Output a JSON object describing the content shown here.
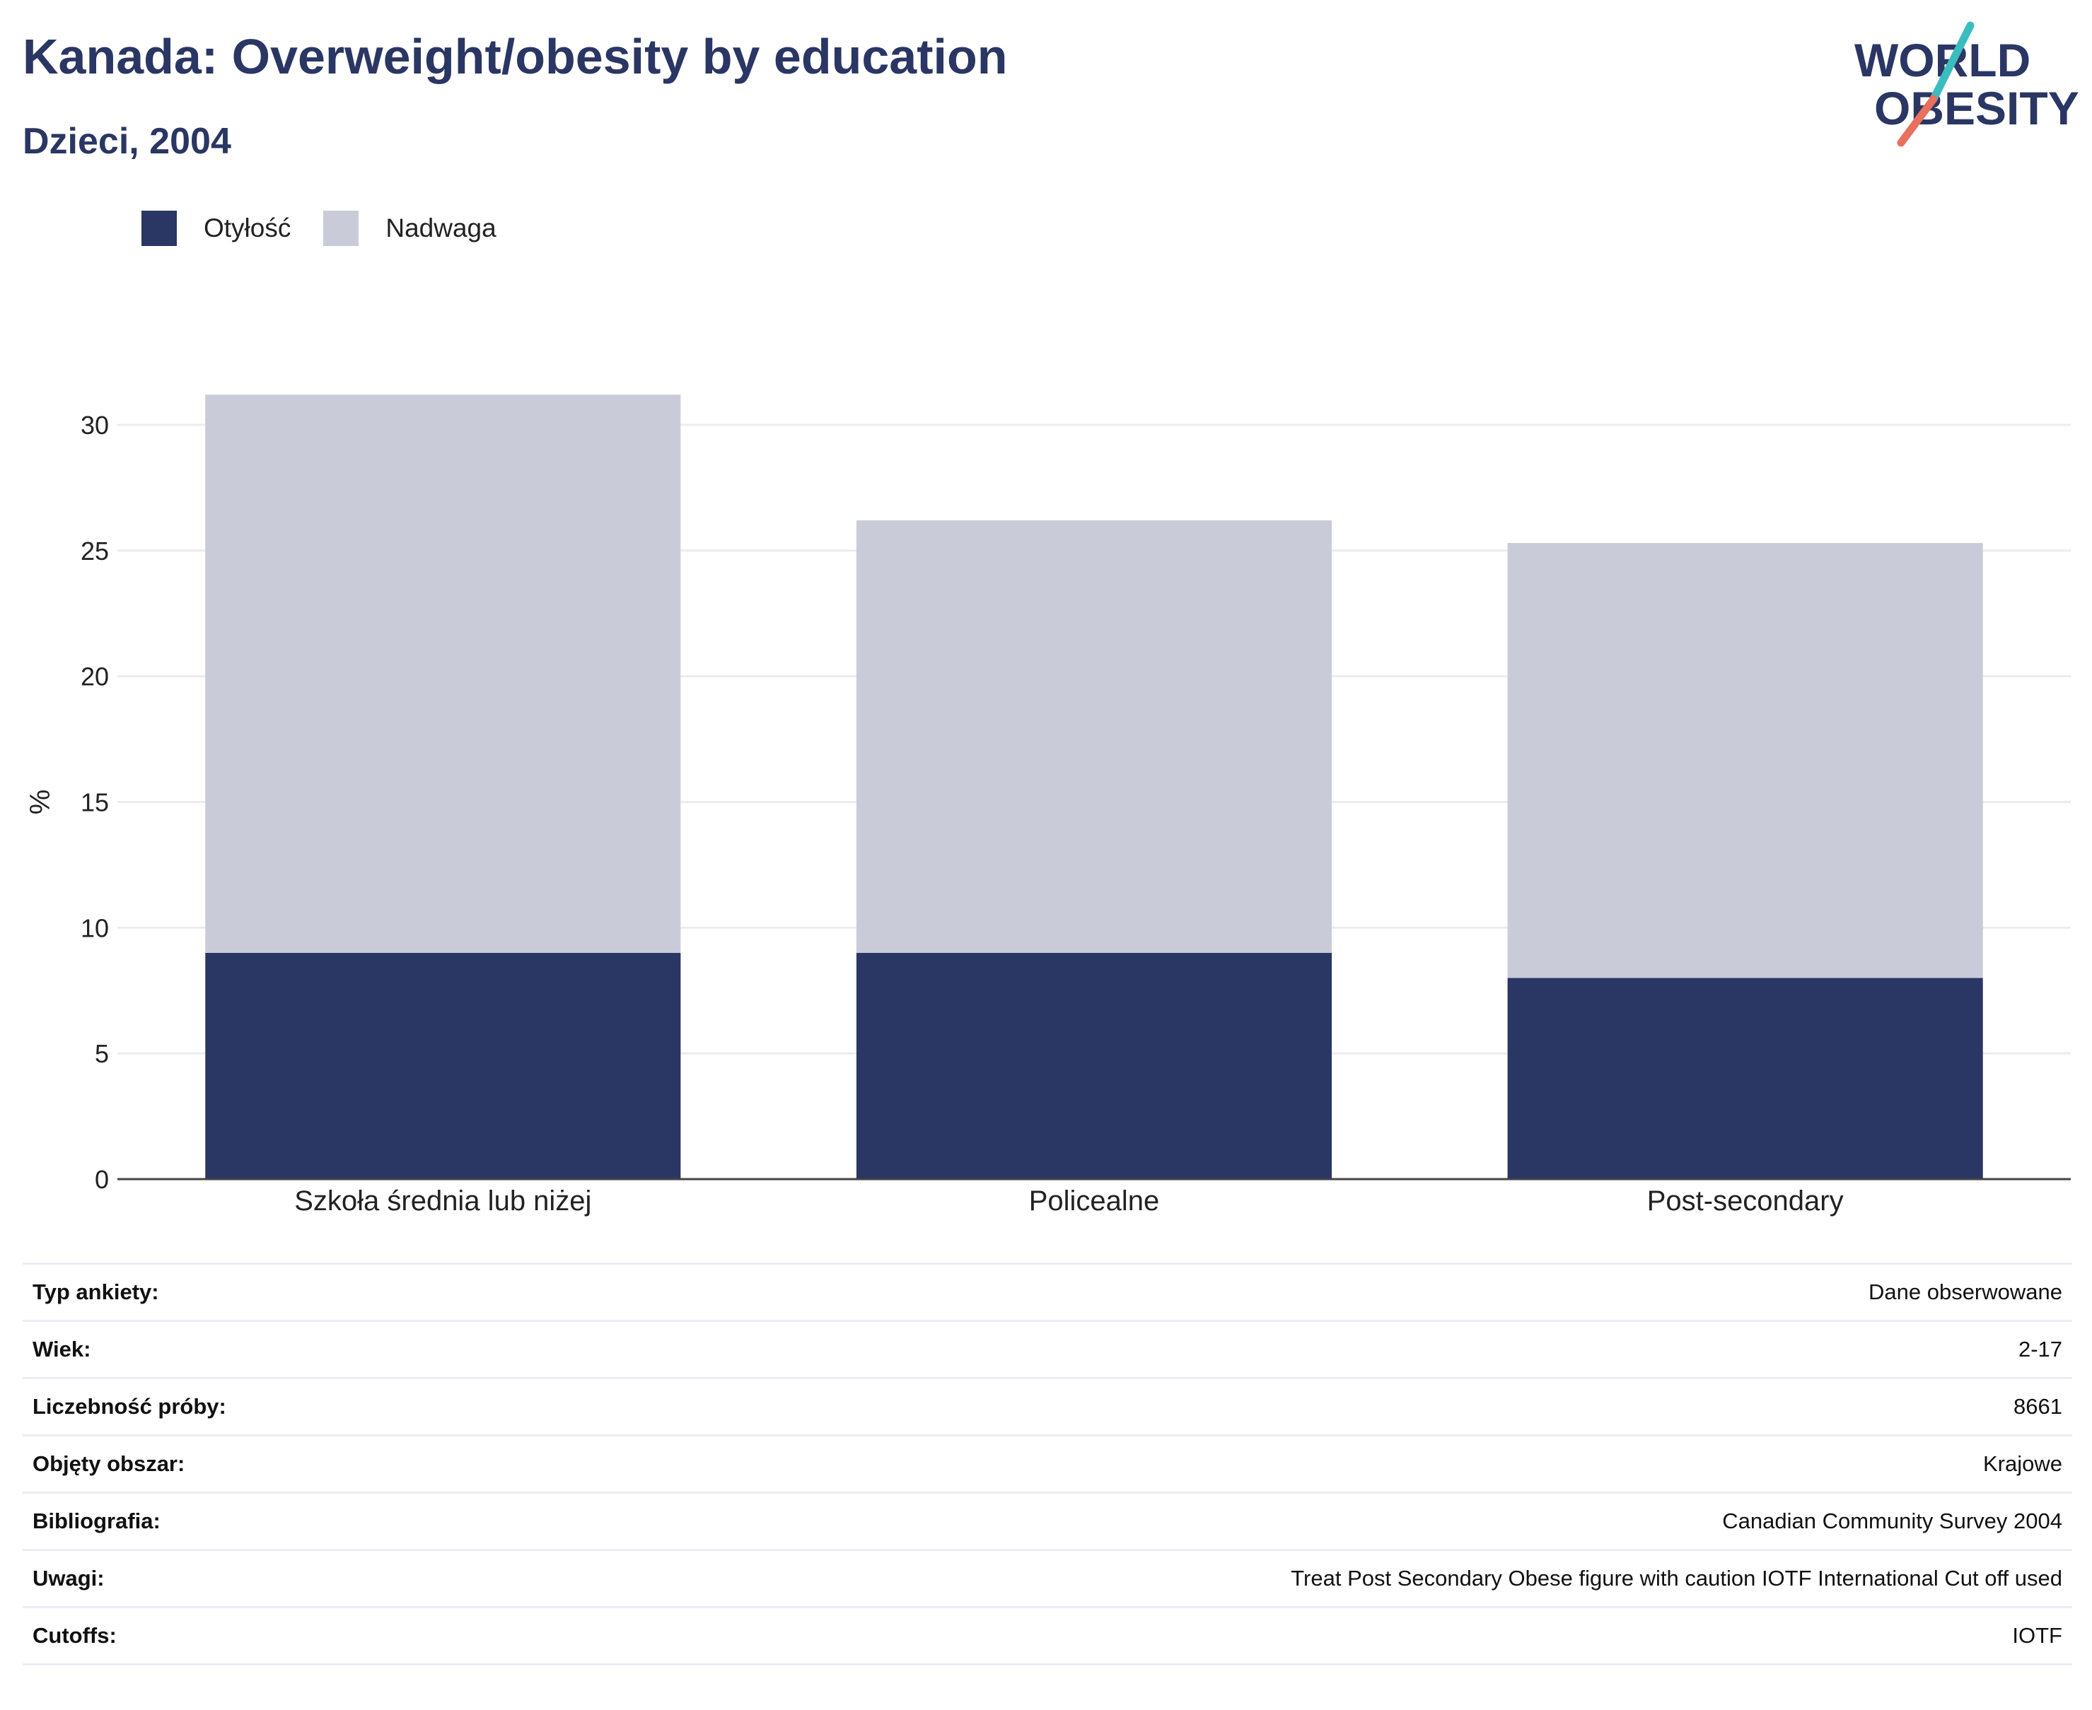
{
  "header": {
    "title": "Kanada: Overweight/obesity by education",
    "subtitle": "Dzieci, 2004"
  },
  "logo": {
    "line1": "WORLD",
    "line2": "OBESITY",
    "text_color": "#2a3663",
    "accent_teal": "#3bbdc0",
    "accent_coral": "#e8705d"
  },
  "legend": {
    "items": [
      {
        "label": "Otyłość",
        "color": "#2a3663"
      },
      {
        "label": "Nadwaga",
        "color": "#c9ccd8"
      }
    ]
  },
  "chart_data": {
    "type": "bar",
    "stacked": true,
    "categories": [
      "Szkoła średnia lub niżej",
      "Policealne",
      "Post-secondary"
    ],
    "series": [
      {
        "name": "Otyłość",
        "color": "#2a3663",
        "values": [
          9,
          9,
          8
        ]
      },
      {
        "name": "Nadwaga",
        "color": "#c9ccd8",
        "values": [
          22.2,
          17.2,
          17.3
        ]
      }
    ],
    "ylabel": "%",
    "ylim": [
      0,
      33
    ],
    "yticks": [
      0,
      5,
      10,
      15,
      20,
      25,
      30
    ],
    "grid": true,
    "legend_position": "top-left"
  },
  "info": {
    "rows": [
      {
        "label": "Typ ankiety:",
        "value": "Dane obserwowane"
      },
      {
        "label": "Wiek:",
        "value": "2-17"
      },
      {
        "label": "Liczebność próby:",
        "value": "8661"
      },
      {
        "label": "Objęty obszar:",
        "value": "Krajowe"
      },
      {
        "label": "Bibliografia:",
        "value": "Canadian Community Survey 2004"
      },
      {
        "label": "Uwagi:",
        "value": "Treat Post Secondary Obese figure with caution IOTF International Cut off used"
      },
      {
        "label": "Cutoffs:",
        "value": "IOTF"
      }
    ]
  }
}
